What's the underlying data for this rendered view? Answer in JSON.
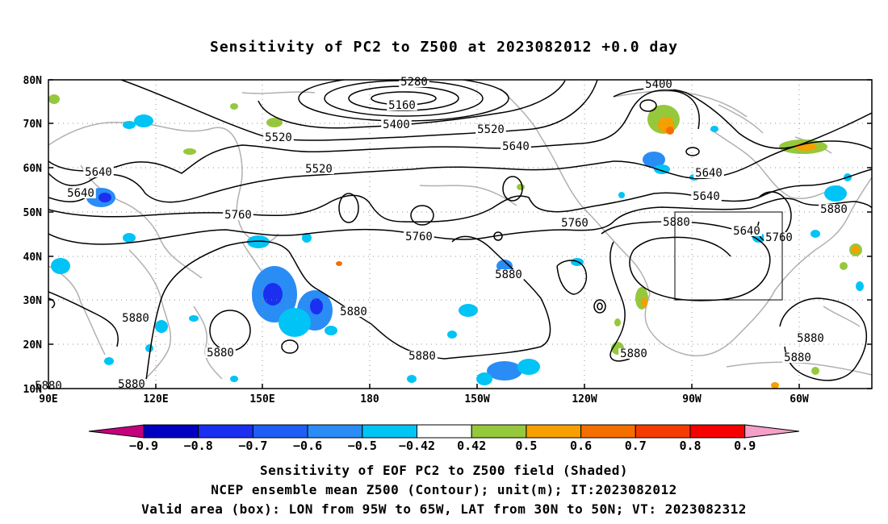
{
  "title": "Sensitivity of PC2 to Z500 at 2023082012 +0.0 day",
  "lat_ticks": [
    "80N",
    "70N",
    "60N",
    "50N",
    "40N",
    "30N",
    "20N",
    "10N"
  ],
  "lon_ticks": [
    "90E",
    "120E",
    "150E",
    "180",
    "150W",
    "120W",
    "90W",
    "60W"
  ],
  "contour_labels": [
    "5280",
    "5160",
    "5400",
    "5520",
    "5640",
    "5400",
    "5520",
    "5640",
    "5520",
    "5640",
    "5640",
    "5640",
    "5640",
    "5760",
    "5760",
    "5760",
    "5880",
    "5760",
    "5880",
    "5880",
    "5880",
    "5880",
    "5880",
    "5880",
    "5880",
    "5880",
    "5880",
    "5880",
    "5880"
  ],
  "colorbar": {
    "colors": [
      "#c4007f",
      "#0000c0",
      "#1a2ff0",
      "#1e5ef5",
      "#2a8cf5",
      "#00c4f5",
      "#ffffff",
      "#96c83c",
      "#f5a000",
      "#f56e00",
      "#f53c00",
      "#f50000",
      "#f5a0c8"
    ],
    "labels": [
      "−0.9",
      "−0.8",
      "−0.7",
      "−0.6",
      "−0.5",
      "−0.42",
      "0.42",
      "0.5",
      "0.6",
      "0.7",
      "0.8",
      "0.9"
    ]
  },
  "footer": {
    "line1": "Sensitivity of EOF PC2 to Z500 field (Shaded)",
    "line2": "NCEP ensemble mean Z500 (Contour); unit(m); IT:2023082012",
    "line3": "Valid area (box): LON from 95W to 65W, LAT from 30N to 50N; VT: 2023082312"
  }
}
